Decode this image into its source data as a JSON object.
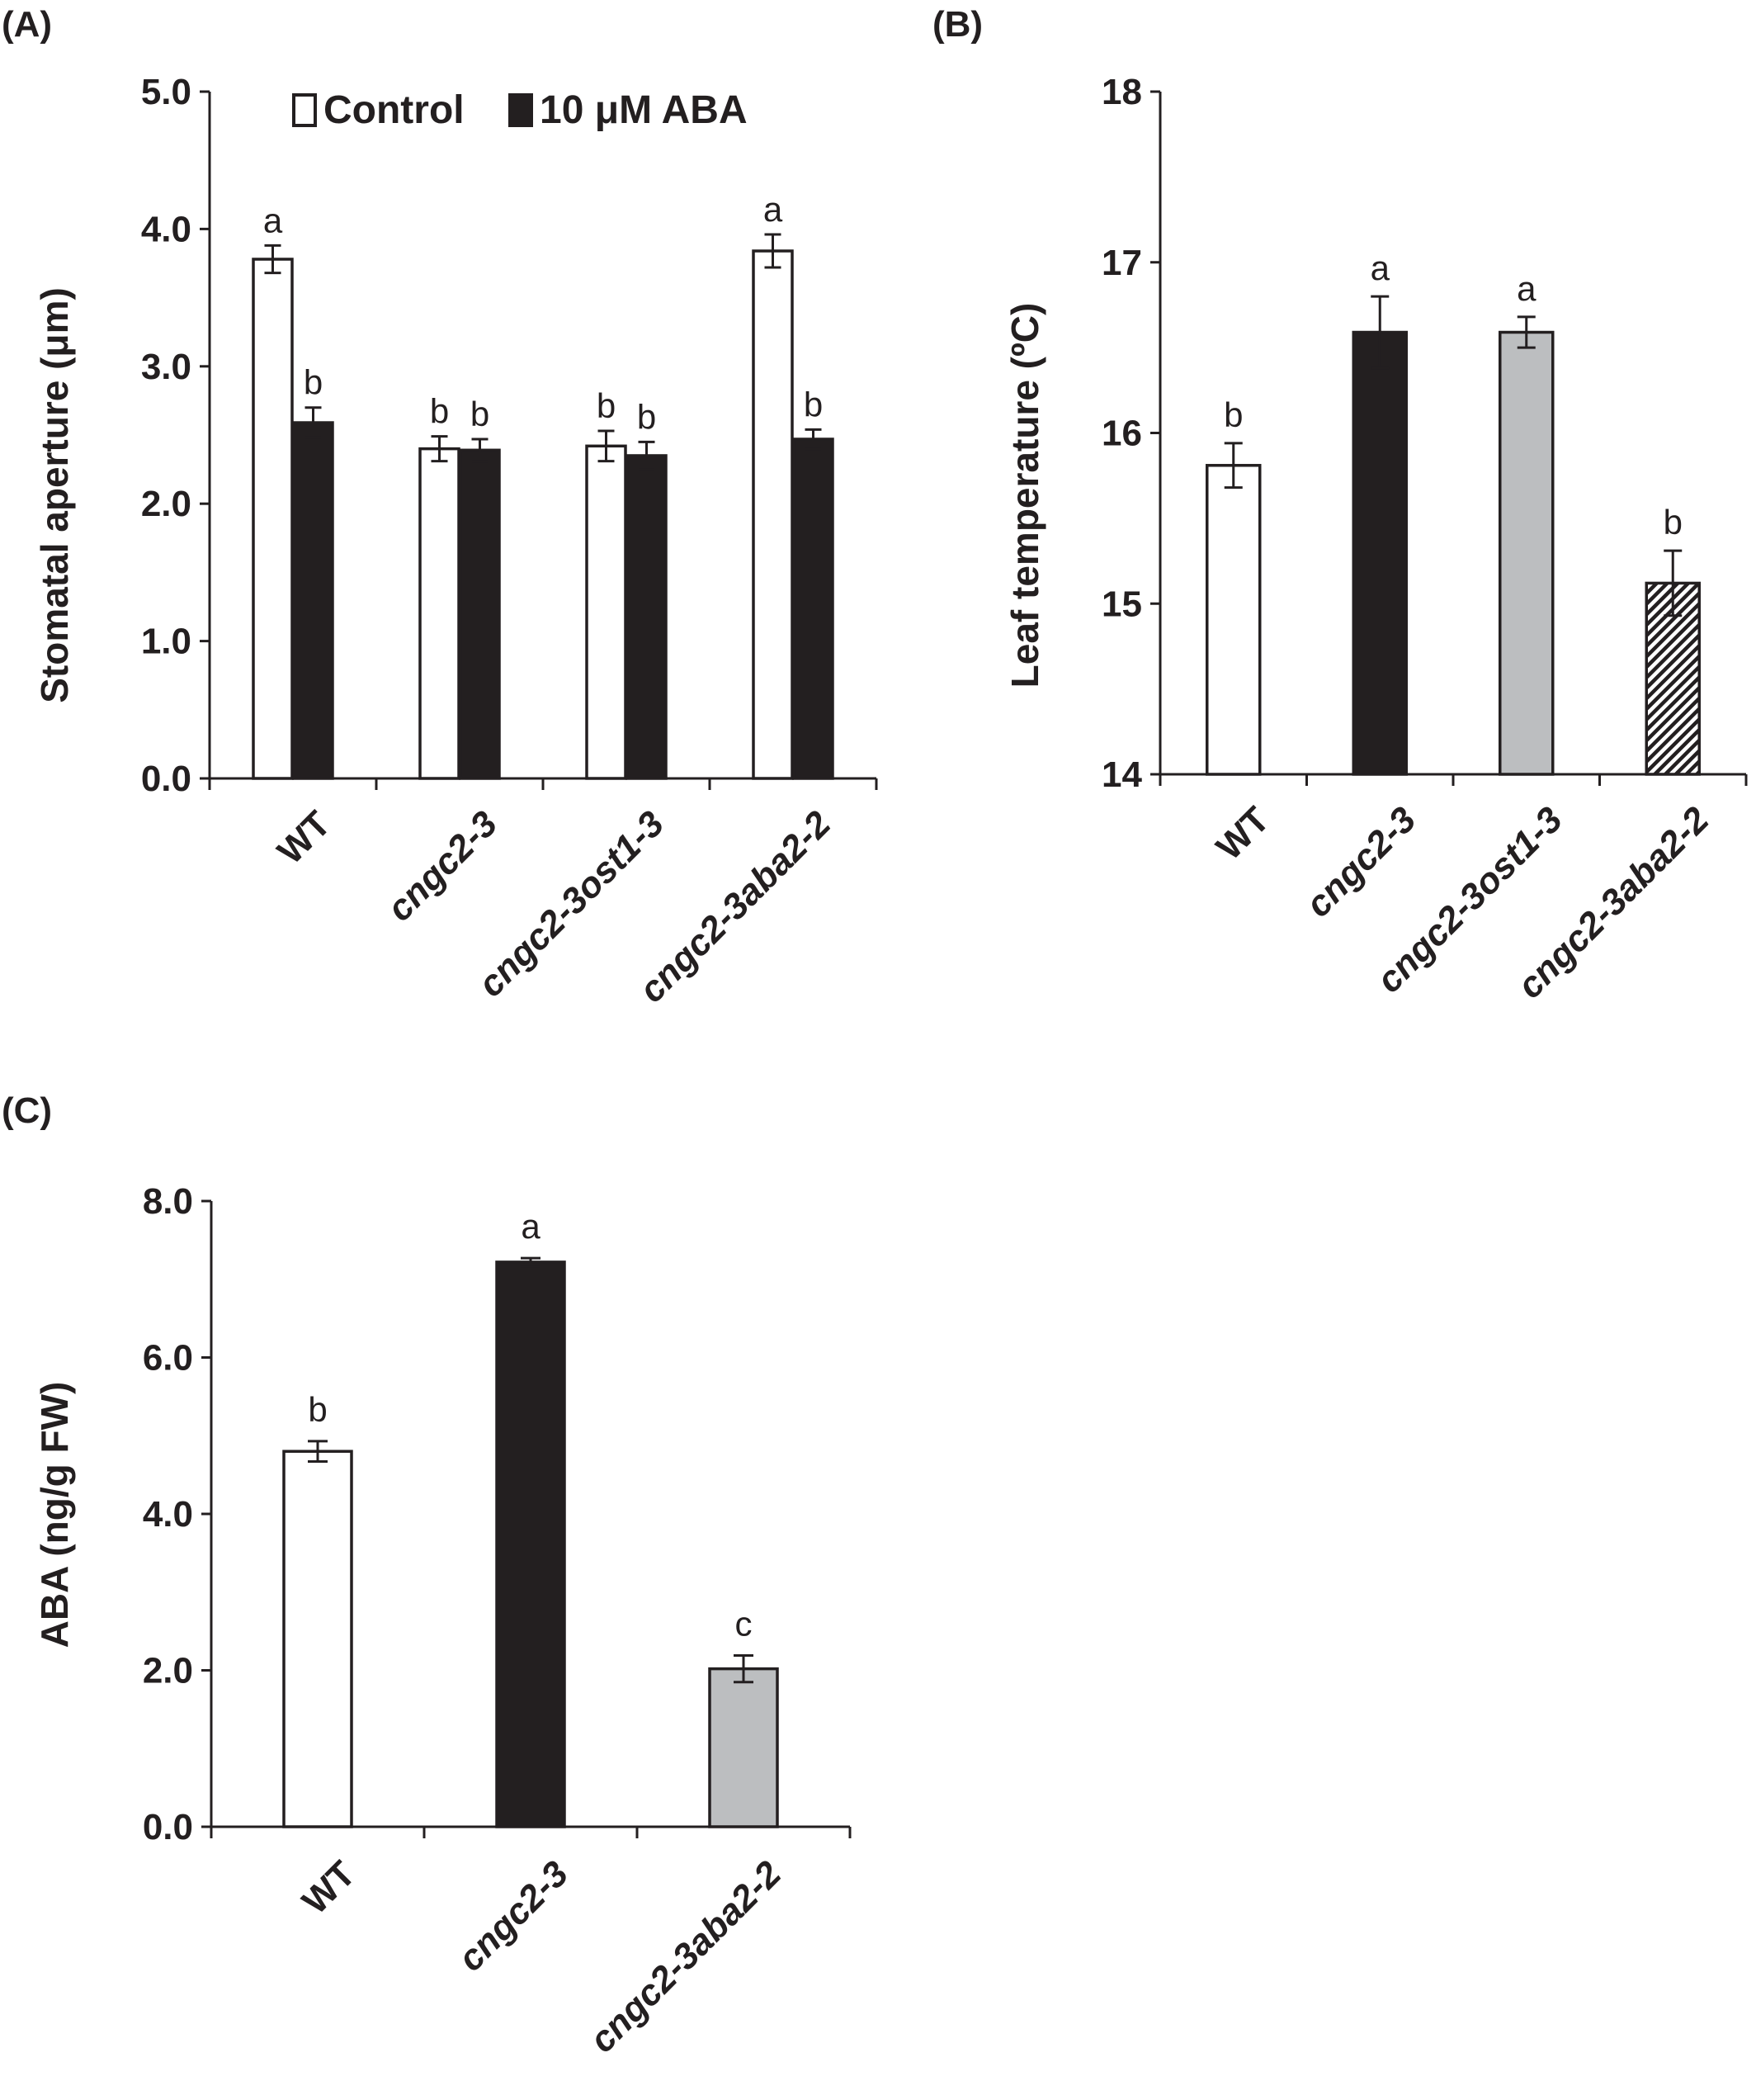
{
  "chart_data": [
    {
      "panel": "(A)",
      "type": "bar",
      "ylabel": "Stomatal aperture (μm)",
      "ylim": [
        0,
        5
      ],
      "yticks": [
        "0.0",
        "1.0",
        "2.0",
        "3.0",
        "4.0",
        "5.0"
      ],
      "categories": [
        "WT",
        "cngc2-3",
        "cngc2-3ost1-3",
        "cngc2-3aba2-2"
      ],
      "legend_position": "top",
      "series": [
        {
          "name": "Control",
          "color": "#ffffff",
          "values": [
            3.78,
            2.4,
            2.42,
            3.84
          ],
          "errors": [
            0.1,
            0.09,
            0.11,
            0.12
          ],
          "labels": [
            "a",
            "b",
            "b",
            "a"
          ]
        },
        {
          "name": "10 μM ABA",
          "color": "#231f20",
          "values": [
            2.59,
            2.39,
            2.35,
            2.47
          ],
          "errors": [
            0.11,
            0.08,
            0.1,
            0.07
          ],
          "labels": [
            "b",
            "b",
            "b",
            "b"
          ]
        }
      ]
    },
    {
      "panel": "(B)",
      "type": "bar",
      "ylabel": "Leaf temperature (ºC)",
      "ylim": [
        14,
        18
      ],
      "yticks": [
        "14",
        "15",
        "16",
        "17",
        "18"
      ],
      "categories": [
        "WT",
        "cngc2-3",
        "cngc2-3ost1-3",
        "cngc2-3aba2-2"
      ],
      "values": [
        15.81,
        16.59,
        16.59,
        15.12
      ],
      "errors": [
        0.13,
        0.21,
        0.09,
        0.19
      ],
      "labels": [
        "b",
        "a",
        "a",
        "b"
      ],
      "colors": [
        "#ffffff",
        "#231f20",
        "#bcbec0",
        "hatched"
      ]
    },
    {
      "panel": "(C)",
      "type": "bar",
      "ylabel": "ABA (ng/g FW)",
      "ylim": [
        0,
        8
      ],
      "yticks": [
        "0.0",
        "2.0",
        "4.0",
        "6.0",
        "8.0"
      ],
      "categories": [
        "WT",
        "cngc2-3",
        "cngc2-3aba2-2"
      ],
      "values": [
        4.8,
        7.22,
        2.02
      ],
      "errors": [
        0.13,
        0.05,
        0.17
      ],
      "labels": [
        "b",
        "a",
        "c"
      ],
      "colors": [
        "#ffffff",
        "#231f20",
        "#bcbec0"
      ]
    }
  ]
}
